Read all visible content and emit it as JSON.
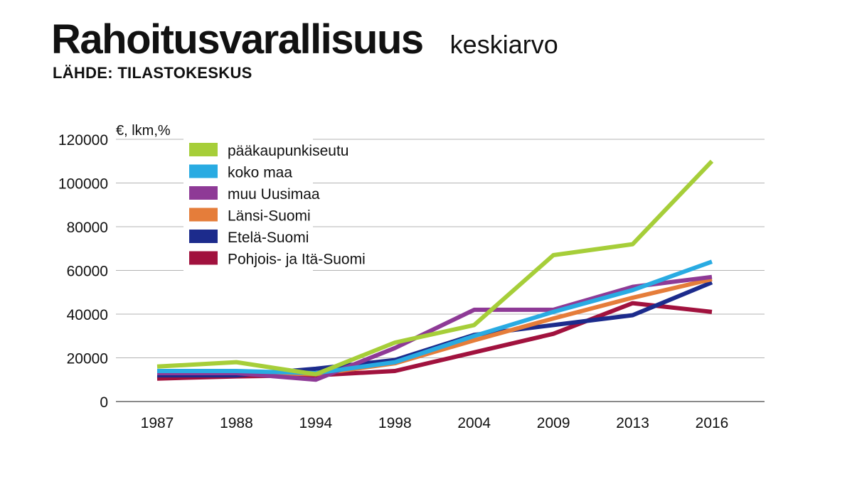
{
  "header": {
    "title": "Rahoitusvarallisuus",
    "subtitle": "keskiarvo",
    "source": "LÄHDE: TILASTOKESKUS"
  },
  "chart_data": {
    "type": "line",
    "unit_label": "€, lkm,%",
    "categories": [
      "1987",
      "1988",
      "1994",
      "1998",
      "2004",
      "2009",
      "2013",
      "2016"
    ],
    "ylim": [
      0,
      120000
    ],
    "yticks": [
      0,
      20000,
      40000,
      60000,
      80000,
      100000,
      120000
    ],
    "ytick_labels": [
      "0",
      "20000",
      "40000",
      "60000",
      "80000",
      "100000",
      "120000"
    ],
    "grid": true,
    "legend_position": "top-left",
    "series": [
      {
        "name": "pääkaupunkiseutu",
        "color": "#a6ce39",
        "values": [
          16000,
          18000,
          12500,
          27000,
          35000,
          67000,
          72000,
          110000
        ]
      },
      {
        "name": "koko maa",
        "color": "#29abe2",
        "values": [
          14000,
          14000,
          13000,
          18000,
          30000,
          41000,
          51000,
          64000
        ]
      },
      {
        "name": "muu Uusimaa",
        "color": "#8e3a96",
        "values": [
          13000,
          13000,
          10000,
          24500,
          42000,
          42000,
          52500,
          57000
        ]
      },
      {
        "name": "Länsi-Suomi",
        "color": "#e57d3a",
        "values": [
          13000,
          13500,
          12500,
          17500,
          28000,
          38000,
          47500,
          56000
        ]
      },
      {
        "name": "Etelä-Suomi",
        "color": "#1c2b8c",
        "values": [
          12000,
          12000,
          15000,
          19000,
          30500,
          35000,
          39500,
          54500
        ]
      },
      {
        "name": "Pohjois- ja Itä-Suomi",
        "color": "#a1123e",
        "values": [
          10500,
          11500,
          12000,
          14000,
          22500,
          31000,
          45000,
          41000
        ]
      }
    ]
  }
}
